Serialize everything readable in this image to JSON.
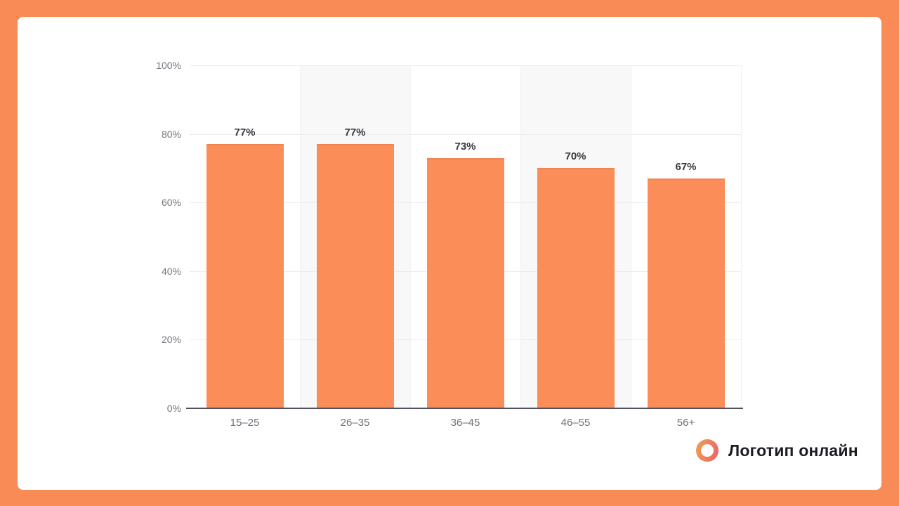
{
  "frame": {
    "border_color": "#F98B57",
    "card_color": "#FFFFFF"
  },
  "logo": {
    "text": "Логотип онлайн",
    "ring_gradient": [
      "#F5A04C",
      "#E9616B"
    ],
    "text_color": "#1B1B22"
  },
  "chart_data": {
    "type": "bar",
    "title": "",
    "categories": [
      "15–25",
      "26–35",
      "36–45",
      "46–55",
      "56+"
    ],
    "values": [
      77,
      77,
      73,
      70,
      67
    ],
    "value_labels": [
      "77%",
      "77%",
      "73%",
      "70%",
      "67%"
    ],
    "xlabel": "",
    "ylabel": "",
    "ylim": [
      0,
      100
    ],
    "yticks": [
      0,
      20,
      40,
      60,
      80,
      100
    ],
    "ytick_labels": [
      "0%",
      "20%",
      "40%",
      "60%",
      "80%",
      "100%"
    ],
    "grid": true,
    "legend": "none",
    "plot_bands_on_categories": [
      1,
      3
    ],
    "colors": {
      "bar": "#FB8D59",
      "plot_band": "#F8F8F9",
      "gridline": "#EBEBEE",
      "axis_line": "#50505A",
      "ytick_color": "#75757F",
      "xtick_color": "#6F6F79",
      "value_label_color": "#38383F"
    }
  }
}
